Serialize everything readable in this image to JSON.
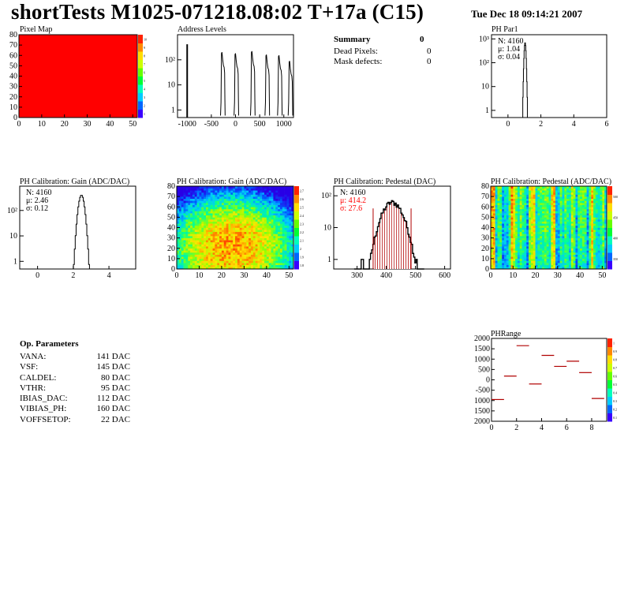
{
  "header": {
    "title": "shortTests M1025-071218.08:02 T+17a (C15)",
    "date": "Tue Dec 18 09:14:21 2007"
  },
  "summary": {
    "title": "Summary",
    "total": "0",
    "rows": [
      {
        "label": "Dead Pixels:",
        "value": "0"
      },
      {
        "label": "Mask defects:",
        "value": "0"
      }
    ]
  },
  "op_params": {
    "title": "Op. Parameters",
    "rows": [
      {
        "label": "VANA:",
        "value": "141 DAC"
      },
      {
        "label": "VSF:",
        "value": "145 DAC"
      },
      {
        "label": "CALDEL:",
        "value": "80 DAC"
      },
      {
        "label": "VTHR:",
        "value": "95 DAC"
      },
      {
        "label": "IBIAS_DAC:",
        "value": "112 DAC"
      },
      {
        "label": "VIBIAS_PH:",
        "value": "160 DAC"
      },
      {
        "label": "VOFFSETOP:",
        "value": "22 DAC"
      }
    ]
  },
  "colors": {
    "red": "#ff0000",
    "darkred": "#b00000"
  },
  "chart_data": [
    {
      "id": "pixel-map",
      "type": "heatmap",
      "title": "Pixel Map",
      "x_ticks": [
        0,
        10,
        20,
        30,
        40,
        50
      ],
      "y_ticks": [
        0,
        10,
        20,
        30,
        40,
        50,
        60,
        70,
        80
      ],
      "xlim": [
        0,
        52
      ],
      "ylim": [
        0,
        80
      ],
      "fill": "uniform-red",
      "zscale_ticks": [
        "1",
        "2",
        "3",
        "4",
        "5",
        "6",
        "7",
        "8",
        "9",
        "10"
      ]
    },
    {
      "id": "address-levels",
      "type": "line",
      "title": "Address Levels",
      "x_ticks": [
        "-1000",
        "-500",
        "0",
        "500",
        "1000"
      ],
      "y_tick_labels": [
        "1",
        "10",
        "10²"
      ],
      "xlim": [
        -1200,
        1200
      ],
      "ylog": [
        0.5,
        1000
      ],
      "peaks": [
        {
          "x": -1000,
          "peak": 400
        },
        {
          "x": -240,
          "peak": 200
        },
        {
          "x": 40,
          "peak": 180
        },
        {
          "x": 380,
          "peak": 220
        },
        {
          "x": 680,
          "peak": 160
        },
        {
          "x": 940,
          "peak": 150
        },
        {
          "x": 1160,
          "peak": 90
        }
      ]
    },
    {
      "id": "ph-par1",
      "type": "line",
      "title": "PH Par1",
      "stats": [
        "N: 4160",
        "μ: 1.04",
        "σ: 0.04"
      ],
      "x_ticks": [
        "0",
        "2",
        "4",
        "6"
      ],
      "y_tick_labels": [
        "1",
        "10",
        "10²",
        "10³"
      ],
      "xlim": [
        -1,
        6
      ],
      "ylog": [
        0.5,
        1500
      ],
      "mean": 1.04,
      "sigma": 0.04,
      "peak": 700
    },
    {
      "id": "ph-gain",
      "type": "line",
      "title": "PH Calibration: Gain (ADC/DAC)",
      "stats": [
        "N: 4160",
        "μ: 2.46",
        "σ: 0.12"
      ],
      "x_ticks": [
        "0",
        "2",
        "4"
      ],
      "y_tick_labels": [
        "1",
        "10",
        "10²"
      ],
      "xlim": [
        -1,
        5.5
      ],
      "ylog": [
        0.5,
        900
      ],
      "mean": 2.46,
      "sigma": 0.12,
      "peak": 400
    },
    {
      "id": "gain-map",
      "type": "heatmap",
      "title": "PH Calibration: Gain (ADC/DAC)",
      "x_ticks": [
        0,
        10,
        20,
        30,
        40,
        50
      ],
      "y_ticks": [
        0,
        10,
        20,
        30,
        40,
        50,
        60,
        70,
        80
      ],
      "xlim": [
        0,
        52
      ],
      "ylim": [
        0,
        80
      ],
      "zscale_ticks": [
        "1.8",
        "1.9",
        "2",
        "2.1",
        "2.2",
        "2.3",
        "2.4",
        "2.5",
        "2.6",
        "2.7"
      ]
    },
    {
      "id": "ph-pedestal",
      "type": "line",
      "title": "PH Calibration: Pedestal (DAC)",
      "stats": [
        "N: 4160"
      ],
      "stats_red": [
        "μ: 414.2",
        "σ: 27.6"
      ],
      "x_ticks": [
        "300",
        "400",
        "500",
        "600"
      ],
      "y_tick_labels": [
        "1",
        "10",
        "10²"
      ],
      "xlim": [
        220,
        620
      ],
      "ylog": [
        0.5,
        200
      ],
      "mean": 414.2,
      "sigma": 27.6,
      "peak": 60,
      "cut_lines": [
        355,
        485
      ]
    },
    {
      "id": "pedestal-map",
      "type": "heatmap",
      "title": "PH Calibration: Pedestal (ADC/DAC)",
      "x_ticks": [
        0,
        10,
        20,
        30,
        40,
        50
      ],
      "y_ticks": [
        0,
        10,
        20,
        30,
        40,
        50,
        60,
        70,
        80
      ],
      "xlim": [
        0,
        52
      ],
      "ylim": [
        0,
        80
      ],
      "zscale_ticks": [
        "350",
        "400",
        "450",
        "500"
      ]
    },
    {
      "id": "ph-range",
      "type": "scatter",
      "title": "PHRange",
      "x_ticks": [
        0,
        2,
        4,
        6,
        8
      ],
      "y_tick_labels": [
        "2000",
        "1500",
        "1000",
        "500",
        "0",
        "-500",
        "1000",
        "1500",
        "2000"
      ],
      "xlim": [
        0,
        9.2
      ],
      "ylim": [
        -2000,
        2000
      ],
      "x": [
        0.5,
        1.5,
        2.5,
        3.5,
        4.5,
        5.5,
        6.5,
        7.5,
        8.5
      ],
      "values": [
        -950,
        180,
        1650,
        -200,
        1180,
        650,
        900,
        350,
        -900
      ],
      "zscale_ticks": [
        "0.1",
        "0.2",
        "0.3",
        "0.4",
        "0.5",
        "0.6",
        "0.7",
        "0.8",
        "0.9",
        "1"
      ]
    }
  ]
}
